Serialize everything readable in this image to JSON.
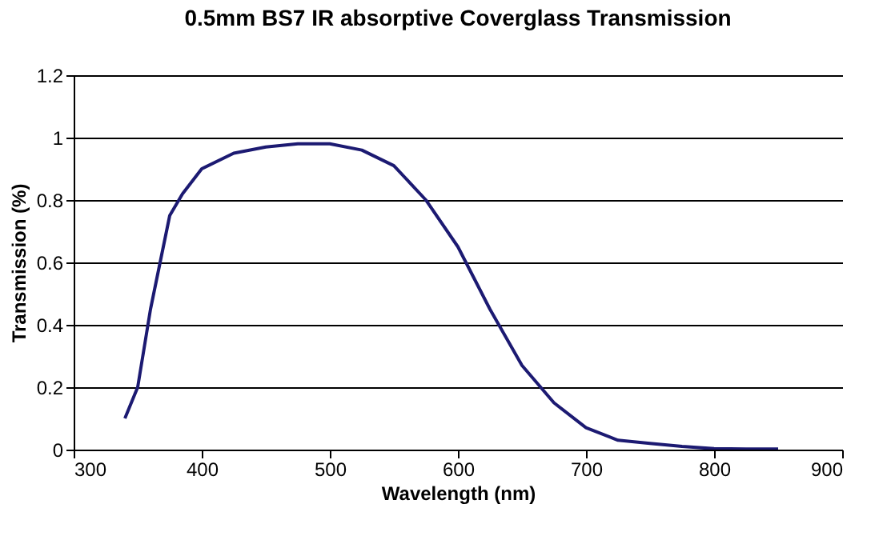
{
  "chart_data": {
    "type": "line",
    "title": "0.5mm BS7 IR absorptive Coverglass Transmission",
    "xlabel": "Wavelength (nm)",
    "ylabel": "Transmission (%)",
    "x": [
      340,
      350,
      360,
      375,
      385,
      400,
      425,
      450,
      475,
      500,
      525,
      550,
      575,
      600,
      625,
      650,
      675,
      700,
      725,
      750,
      775,
      800,
      825,
      850
    ],
    "series": [
      {
        "color": "#1c1a72",
        "values": [
          0.1,
          0.2,
          0.45,
          0.75,
          0.82,
          0.9,
          0.95,
          0.97,
          0.98,
          0.98,
          0.96,
          0.91,
          0.8,
          0.65,
          0.45,
          0.27,
          0.15,
          0.07,
          0.03,
          0.02,
          0.01,
          0.003,
          0.002,
          0.002
        ]
      }
    ],
    "xlim": [
      300,
      900
    ],
    "xticks": [
      300,
      400,
      500,
      600,
      700,
      800,
      900
    ],
    "ylim": [
      0,
      1.2
    ],
    "yticks": [
      0,
      0.2,
      0.4,
      0.6,
      0.8,
      1,
      1.2
    ],
    "grid": "y",
    "legend": false,
    "marker": "none",
    "line_style": "solid"
  }
}
